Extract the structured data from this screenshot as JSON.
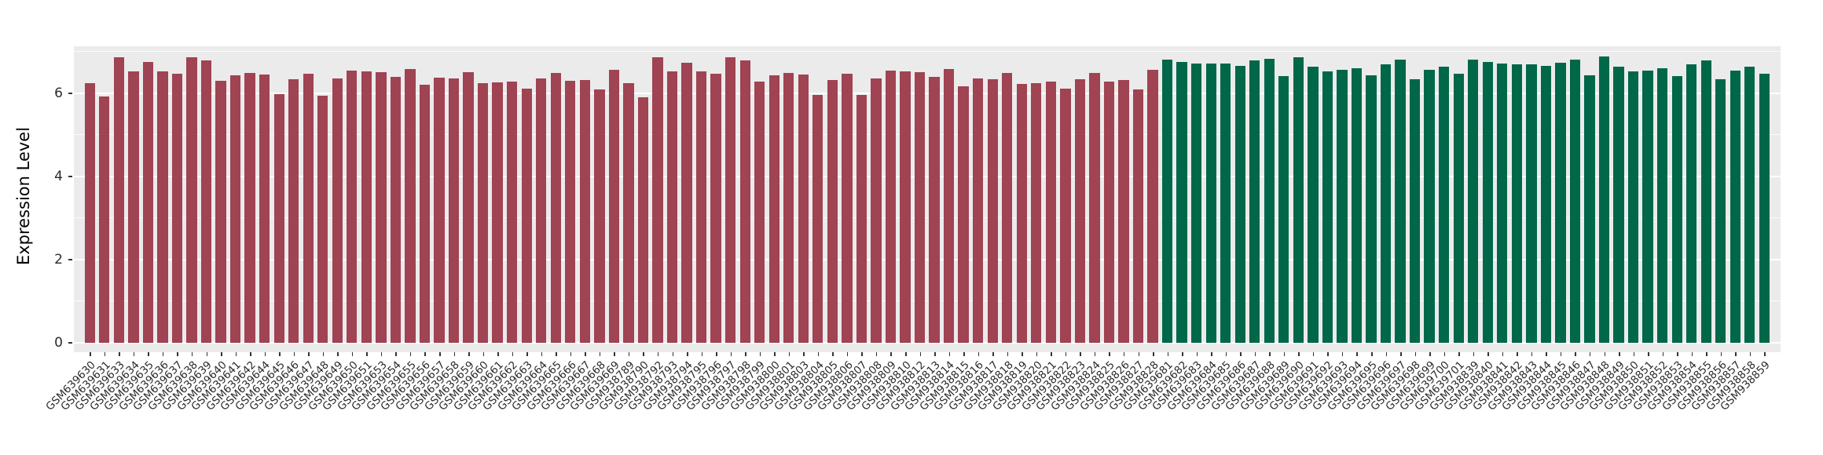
{
  "chart_data": {
    "type": "bar",
    "title": "",
    "xlabel": "",
    "ylabel": "Expression Level",
    "ylim": [
      0,
      7.2
    ],
    "yticks": [
      0,
      2,
      4,
      6
    ],
    "yminor": [
      1,
      3,
      5,
      7
    ],
    "grid": true,
    "legend": "none",
    "panel_bg": "#EBEBEB",
    "grid_color": "#FFFFFF",
    "tick_text_color": "#2b2b2b",
    "group1_color": "#A04352",
    "group1_count": 74,
    "group2_color": "#006749",
    "group2_count": 42,
    "categories": [
      "GSM639630",
      "GSM639631",
      "GSM639633",
      "GSM639634",
      "GSM639635",
      "GSM639636",
      "GSM639637",
      "GSM639638",
      "GSM639639",
      "GSM639640",
      "GSM639641",
      "GSM639642",
      "GSM639644",
      "GSM639645",
      "GSM639646",
      "GSM639647",
      "GSM639648",
      "GSM639649",
      "GSM639650",
      "GSM639651",
      "GSM639653",
      "GSM639654",
      "GSM639655",
      "GSM639656",
      "GSM639657",
      "GSM639658",
      "GSM639659",
      "GSM639660",
      "GSM639661",
      "GSM639662",
      "GSM639663",
      "GSM639664",
      "GSM639665",
      "GSM639666",
      "GSM639667",
      "GSM639668",
      "GSM639669",
      "GSM938789",
      "GSM938790",
      "GSM938792",
      "GSM938793",
      "GSM938794",
      "GSM938795",
      "GSM938796",
      "GSM938797",
      "GSM938798",
      "GSM938799",
      "GSM938800",
      "GSM938801",
      "GSM938803",
      "GSM938804",
      "GSM938805",
      "GSM938806",
      "GSM938807",
      "GSM938808",
      "GSM938809",
      "GSM938810",
      "GSM938812",
      "GSM938813",
      "GSM938814",
      "GSM938815",
      "GSM938816",
      "GSM938817",
      "GSM938818",
      "GSM938819",
      "GSM938820",
      "GSM938821",
      "GSM938822",
      "GSM938823",
      "GSM938824",
      "GSM938825",
      "GSM938826",
      "GSM938827",
      "GSM938828",
      "GSM639681",
      "GSM639682",
      "GSM639683",
      "GSM639684",
      "GSM639685",
      "GSM639686",
      "GSM639687",
      "GSM639688",
      "GSM639689",
      "GSM639690",
      "GSM639691",
      "GSM639692",
      "GSM639693",
      "GSM639694",
      "GSM639695",
      "GSM639696",
      "GSM639697",
      "GSM639698",
      "GSM639699",
      "GSM639700",
      "GSM639701",
      "GSM938839",
      "GSM938840",
      "GSM938841",
      "GSM938842",
      "GSM938843",
      "GSM938844",
      "GSM938845",
      "GSM938846",
      "GSM938847",
      "GSM938848",
      "GSM938849",
      "GSM938850",
      "GSM938851",
      "GSM938852",
      "GSM938853",
      "GSM938854",
      "GSM938855",
      "GSM938856",
      "GSM938857",
      "GSM938858",
      "GSM938859"
    ],
    "values": [
      6.25,
      5.93,
      6.87,
      6.53,
      6.75,
      6.53,
      6.47,
      6.87,
      6.79,
      6.3,
      6.43,
      6.49,
      6.45,
      5.98,
      6.34,
      6.47,
      5.94,
      6.35,
      6.55,
      6.52,
      6.51,
      6.4,
      6.59,
      6.2,
      6.37,
      6.35,
      6.51,
      6.24,
      6.26,
      6.29,
      6.11,
      6.36,
      6.49,
      6.3,
      6.33,
      6.1,
      6.57,
      6.25,
      5.91,
      6.87,
      6.53,
      6.74,
      6.53,
      6.48,
      6.86,
      6.79,
      6.29,
      6.43,
      6.49,
      6.45,
      5.97,
      6.33,
      6.48,
      5.96,
      6.36,
      6.54,
      6.53,
      6.51,
      6.39,
      6.59,
      6.17,
      6.35,
      6.34,
      6.5,
      6.23,
      6.25,
      6.28,
      6.11,
      6.34,
      6.49,
      6.29,
      6.32,
      6.09,
      6.56,
      6.82,
      6.76,
      6.71,
      6.71,
      6.71,
      6.67,
      6.8,
      6.83,
      6.42,
      6.86,
      6.65,
      6.53,
      6.57,
      6.61,
      6.43,
      6.69,
      6.81,
      6.34,
      6.56,
      6.64,
      6.48,
      6.81,
      6.76,
      6.71,
      6.7,
      6.7,
      6.67,
      6.73,
      6.82,
      6.43,
      6.88,
      6.65,
      6.53,
      6.55,
      6.6,
      6.42,
      6.69,
      6.8,
      6.34,
      6.55,
      6.64,
      6.47
    ]
  }
}
